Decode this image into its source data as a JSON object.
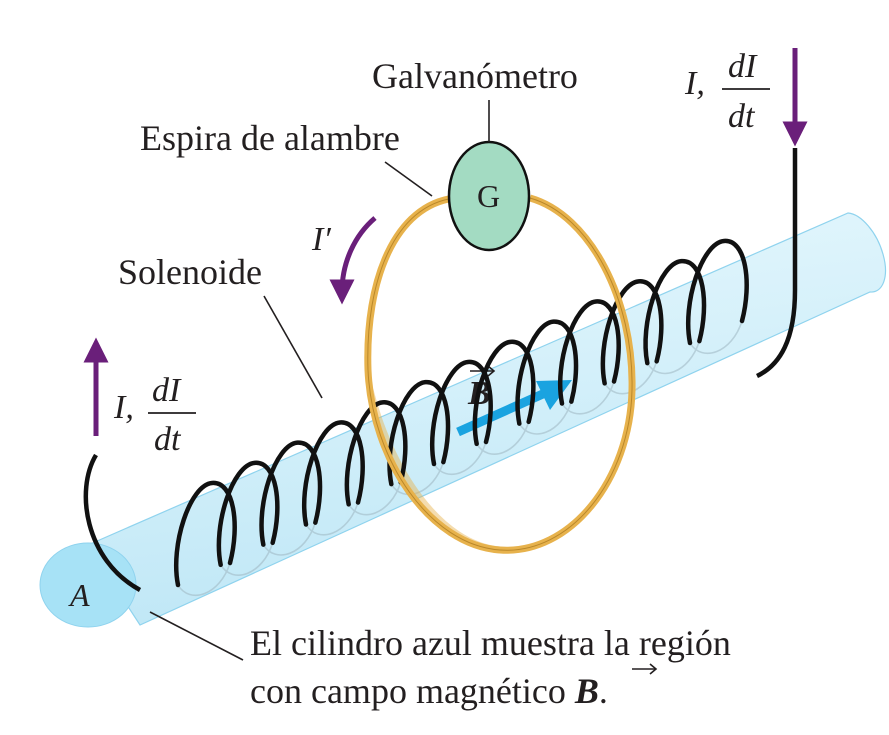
{
  "labels": {
    "galvanometer": "Galvanómetro",
    "galvanometer_symbol": "G",
    "loop": "Espira de alambre",
    "solenoid": "Solenoide",
    "cylinder_end": "A",
    "caption_line1": "El cilindro azul muestra la región",
    "caption_line2_prefix": "con campo magnético ",
    "caption_line2_vector": "B",
    "caption_line2_suffix": ".",
    "field_vector": "B"
  },
  "current_left": {
    "symbol": "I,",
    "numerator": "dI",
    "denominator": "dt"
  },
  "current_right": {
    "symbol": "I,",
    "numerator": "dI",
    "denominator": "dt"
  },
  "induced_current": "I′",
  "colors": {
    "cylinder_fill": "#cfeef9",
    "cylinder_edge": "#8fd3ee",
    "cylinder_end": "#a7e2f6",
    "coil": "#111111",
    "loop": "#e7b24c",
    "galvanometer_fill": "#a3dbc2",
    "current_arrow": "#6a1f7a",
    "field_arrow": "#1aa3e0"
  }
}
